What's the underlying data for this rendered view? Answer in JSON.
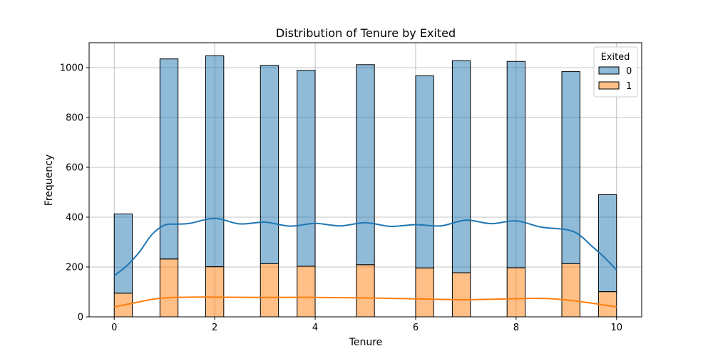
{
  "chart_data": {
    "type": "bar",
    "title": "Distribution of Tenure by Exited",
    "xlabel": "Tenure",
    "ylabel": "Frequency",
    "xlim": [
      -0.5,
      10.5
    ],
    "ylim": [
      0,
      1100
    ],
    "xticks": [
      0,
      2,
      4,
      6,
      8,
      10
    ],
    "yticks": [
      0,
      200,
      400,
      600,
      800,
      1000
    ],
    "grid": true,
    "stacked": true,
    "bar_centers": [
      0.18,
      1.09,
      2.0,
      3.09,
      3.82,
      5.0,
      6.18,
      6.91,
      8.0,
      9.09,
      9.82
    ],
    "bin_width": 0.36,
    "legend": {
      "title": "Exited",
      "position": "top-right",
      "entries": [
        {
          "label": "0",
          "color": "#1f77b4"
        },
        {
          "label": "1",
          "color": "#ff7f0e"
        }
      ]
    },
    "series": [
      {
        "name": "1",
        "totals": [
          95,
          232,
          201,
          213,
          203,
          209,
          196,
          177,
          197,
          213,
          101
        ],
        "color": "#ff7f0e"
      },
      {
        "name": "0",
        "totals": [
          413,
          1035,
          1048,
          1009,
          989,
          1012,
          967,
          1028,
          1025,
          984,
          490
        ],
        "color": "#1f77b4"
      }
    ],
    "kde": [
      {
        "name": "0",
        "color": "#1f77b4",
        "x": [
          0,
          0.25,
          0.5,
          0.75,
          1.0,
          1.25,
          1.5,
          2.0,
          2.5,
          3.0,
          3.5,
          4.0,
          4.5,
          5.0,
          5.5,
          6.0,
          6.5,
          7.0,
          7.5,
          8.0,
          8.5,
          9.0,
          9.25,
          9.5,
          9.75,
          10.0
        ],
        "y": [
          165,
          205,
          260,
          330,
          368,
          372,
          375,
          395,
          373,
          380,
          364,
          375,
          365,
          378,
          363,
          370,
          365,
          388,
          374,
          385,
          360,
          350,
          330,
          285,
          240,
          188
        ]
      },
      {
        "name": "1",
        "color": "#ff7f0e",
        "x": [
          0,
          0.25,
          0.5,
          0.75,
          1.0,
          1.5,
          2.0,
          3.0,
          4.0,
          5.0,
          6.0,
          7.0,
          8.0,
          8.5,
          9.0,
          9.5,
          10.0
        ],
        "y": [
          40,
          50,
          60,
          70,
          76,
          79,
          79,
          78,
          78,
          76,
          72,
          69,
          73,
          74,
          68,
          55,
          40
        ]
      }
    ]
  }
}
